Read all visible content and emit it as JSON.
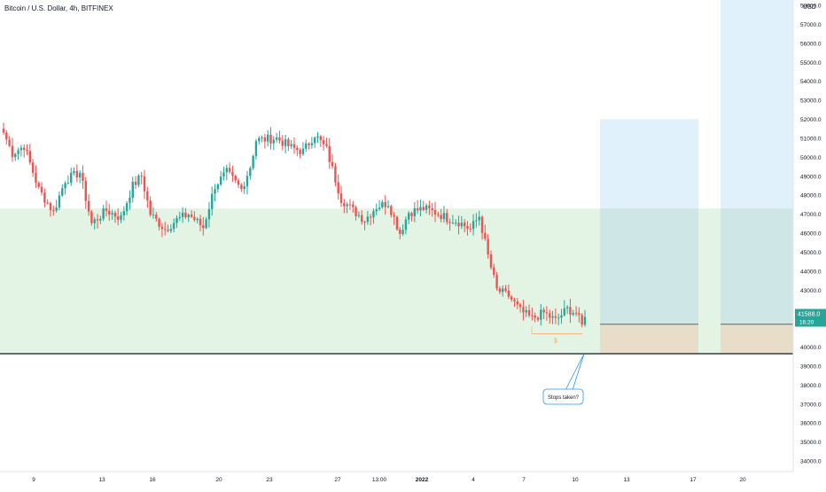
{
  "header": {
    "title": "Bitcoin / U.S. Dollar, 4h, BITFINEX",
    "currency": "USD"
  },
  "colors": {
    "bull": "#26a69a",
    "bear": "#ef5350",
    "green_zone": "#e3f3e4",
    "blue_zone": "#dceefc",
    "tan_zone": "#e8ddc9",
    "support_line": "#131722",
    "price_label_bg": "#26a69a",
    "callout_border": "#2196f3",
    "stop_marker": "#f7a35c"
  },
  "price_label": {
    "price": "41588.0",
    "timer": "16:20"
  },
  "annotation": {
    "callout_text": "Stops taken?",
    "marker_text": "$"
  },
  "chart_data": {
    "type": "candlestick",
    "title": "Bitcoin / U.S. Dollar, 4h, BITFINEX",
    "ylabel": "USD",
    "ylim": [
      33500,
      58000
    ],
    "y_ticks": [
      "34000.0",
      "35000.0",
      "36000.0",
      "37000.0",
      "38000.0",
      "39000.0",
      "40000.0",
      "41000.0",
      "42000.0",
      "43000.0",
      "44000.0",
      "45000.0",
      "46000.0",
      "47000.0",
      "48000.0",
      "49000.0",
      "50000.0",
      "51000.0",
      "52000.0",
      "53000.0",
      "54000.0",
      "55000.0",
      "56000.0",
      "57000.0",
      "58000.0"
    ],
    "x_ticks": [
      "9",
      "13",
      "16",
      "20",
      "23",
      "27",
      "13:00",
      "2022",
      "4",
      "7",
      "10",
      "13",
      "17",
      "20"
    ],
    "last_price": 41588.0,
    "support_level": 39650,
    "zones": [
      {
        "name": "green-zone",
        "from": 39650,
        "to": 47300
      },
      {
        "name": "blue-zone-1",
        "from": 41200,
        "to": 52000
      },
      {
        "name": "tan-zone-1",
        "from": 39650,
        "to": 41200
      },
      {
        "name": "blue-zone-2",
        "from": 41200,
        "to": 58000
      },
      {
        "name": "tan-zone-2",
        "from": 39650,
        "to": 41200
      }
    ],
    "close_path": [
      {
        "i": 0,
        "p": 51300
      },
      {
        "i": 3,
        "p": 50200
      },
      {
        "i": 7,
        "p": 50600
      },
      {
        "i": 12,
        "p": 48300
      },
      {
        "i": 17,
        "p": 47100
      },
      {
        "i": 21,
        "p": 48800
      },
      {
        "i": 26,
        "p": 49200
      },
      {
        "i": 30,
        "p": 46500
      },
      {
        "i": 35,
        "p": 47200
      },
      {
        "i": 40,
        "p": 46800
      },
      {
        "i": 44,
        "p": 48500
      },
      {
        "i": 47,
        "p": 49000
      },
      {
        "i": 50,
        "p": 47000
      },
      {
        "i": 55,
        "p": 46200
      },
      {
        "i": 59,
        "p": 46700
      },
      {
        "i": 63,
        "p": 47000
      },
      {
        "i": 68,
        "p": 46300
      },
      {
        "i": 72,
        "p": 48500
      },
      {
        "i": 76,
        "p": 49200
      },
      {
        "i": 81,
        "p": 48300
      },
      {
        "i": 84,
        "p": 49500
      },
      {
        "i": 86,
        "p": 50900
      },
      {
        "i": 93,
        "p": 51000
      },
      {
        "i": 98,
        "p": 50500
      },
      {
        "i": 102,
        "p": 50300
      },
      {
        "i": 106,
        "p": 51200
      },
      {
        "i": 110,
        "p": 50400
      },
      {
        "i": 115,
        "p": 47800
      },
      {
        "i": 119,
        "p": 47200
      },
      {
        "i": 123,
        "p": 46700
      },
      {
        "i": 127,
        "p": 47400
      },
      {
        "i": 131,
        "p": 47600
      },
      {
        "i": 135,
        "p": 46000
      },
      {
        "i": 138,
        "p": 47100
      },
      {
        "i": 143,
        "p": 47300
      },
      {
        "i": 147,
        "p": 47100
      },
      {
        "i": 151,
        "p": 46800
      },
      {
        "i": 155,
        "p": 46600
      },
      {
        "i": 159,
        "p": 46200
      },
      {
        "i": 162,
        "p": 46900
      },
      {
        "i": 165,
        "p": 44800
      },
      {
        "i": 168,
        "p": 43000
      },
      {
        "i": 172,
        "p": 42700
      },
      {
        "i": 176,
        "p": 41900
      },
      {
        "i": 180,
        "p": 41500
      },
      {
        "i": 184,
        "p": 41800
      },
      {
        "i": 188,
        "p": 41400
      },
      {
        "i": 192,
        "p": 42000
      },
      {
        "i": 195,
        "p": 41800
      },
      {
        "i": 197,
        "p": 41100
      },
      {
        "i": 198,
        "p": 41588
      }
    ]
  }
}
